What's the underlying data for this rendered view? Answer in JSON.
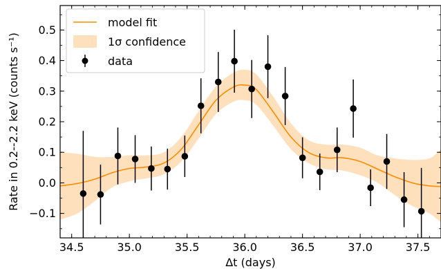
{
  "chart_data": {
    "type": "line",
    "xlabel": "Δt (days)",
    "ylabel": "Rate in 0.2--2.2 keV (counts s⁻¹)",
    "xlim": [
      34.4,
      37.7
    ],
    "ylim": [
      -0.18,
      0.58
    ],
    "xticks": [
      34.5,
      35.0,
      35.5,
      36.0,
      36.5,
      37.0,
      37.5
    ],
    "xtick_labels": [
      "34.5",
      "35.0",
      "35.5",
      "36.0",
      "36.5",
      "37.0",
      "37.5"
    ],
    "yticks": [
      -0.1,
      0.0,
      0.1,
      0.2,
      0.3,
      0.4,
      0.5
    ],
    "ytick_labels": [
      "−0.1",
      "0.0",
      "0.1",
      "0.2",
      "0.3",
      "0.4",
      "0.5"
    ],
    "legend": {
      "placement": "upper-left",
      "entries": [
        "model fit",
        "1σ confidence",
        "data"
      ]
    },
    "colors": {
      "model": "#ff8c00",
      "band": "#ffe0bd",
      "data": "#000000"
    },
    "series": [
      {
        "name": "model fit",
        "kind": "line",
        "x": [
          34.4,
          34.55,
          34.7,
          34.85,
          35.0,
          35.15,
          35.3,
          35.45,
          35.6,
          35.75,
          35.9,
          36.0,
          36.1,
          36.25,
          36.4,
          36.55,
          36.7,
          36.85,
          37.0,
          37.15,
          37.3,
          37.45,
          37.6,
          37.7
        ],
        "y": [
          -0.01,
          -0.002,
          0.012,
          0.033,
          0.047,
          0.052,
          0.065,
          0.11,
          0.19,
          0.27,
          0.313,
          0.32,
          0.305,
          0.23,
          0.15,
          0.1,
          0.082,
          0.082,
          0.07,
          0.045,
          0.02,
          0.0,
          -0.01,
          -0.012
        ]
      },
      {
        "name": "1σ confidence",
        "kind": "band",
        "x": [
          34.4,
          34.55,
          34.7,
          34.85,
          35.0,
          35.15,
          35.3,
          35.45,
          35.6,
          35.75,
          35.9,
          36.0,
          36.1,
          36.25,
          36.4,
          36.55,
          36.7,
          36.85,
          37.0,
          37.15,
          37.3,
          37.45,
          37.6,
          37.7
        ],
        "lower": [
          -0.12,
          -0.1,
          -0.06,
          -0.015,
          0.005,
          0.015,
          0.028,
          0.07,
          0.145,
          0.225,
          0.265,
          0.27,
          0.255,
          0.185,
          0.11,
          0.065,
          0.045,
          0.04,
          0.025,
          0.0,
          -0.04,
          -0.075,
          -0.1,
          -0.13
        ],
        "upper": [
          0.1,
          0.095,
          0.085,
          0.085,
          0.09,
          0.09,
          0.1,
          0.15,
          0.235,
          0.315,
          0.36,
          0.37,
          0.355,
          0.28,
          0.195,
          0.14,
          0.125,
          0.125,
          0.115,
          0.09,
          0.08,
          0.075,
          0.08,
          0.11
        ]
      },
      {
        "name": "data",
        "kind": "errorbar",
        "x": [
          34.6,
          34.75,
          34.9,
          35.05,
          35.19,
          35.33,
          35.48,
          35.62,
          35.77,
          35.91,
          36.06,
          36.2,
          36.35,
          36.5,
          36.65,
          36.8,
          36.94,
          37.09,
          37.23,
          37.38,
          37.53
        ],
        "y": [
          -0.035,
          -0.038,
          0.088,
          0.078,
          0.047,
          0.045,
          0.087,
          0.252,
          0.33,
          0.398,
          0.307,
          0.38,
          0.284,
          0.082,
          0.036,
          0.108,
          0.243,
          -0.016,
          0.07,
          -0.055,
          -0.093
        ],
        "yerr": [
          0.205,
          0.098,
          0.093,
          0.078,
          0.072,
          0.067,
          0.068,
          0.09,
          0.098,
          0.103,
          0.095,
          0.103,
          0.095,
          0.067,
          0.06,
          0.073,
          0.095,
          0.06,
          0.09,
          0.09,
          0.142
        ]
      }
    ]
  }
}
